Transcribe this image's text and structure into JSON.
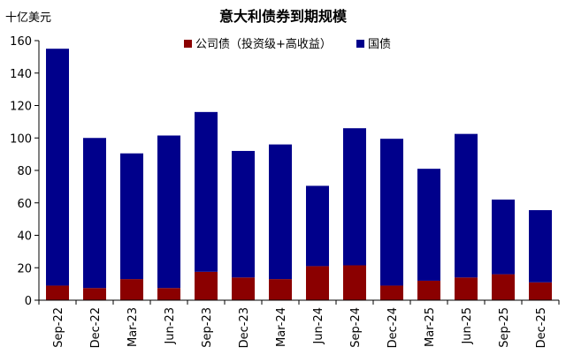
{
  "chart_data": {
    "type": "bar",
    "stacked": true,
    "title": "意大利债券到期规模",
    "unit_label": "十亿美元",
    "categories": [
      "Sep-22",
      "Dec-22",
      "Mar-23",
      "Jun-23",
      "Sep-23",
      "Dec-23",
      "Mar-24",
      "Jun-24",
      "Sep-24",
      "Dec-24",
      "Mar-25",
      "Jun-25",
      "Sep-25",
      "Dec-25"
    ],
    "series": [
      {
        "name": "公司债（投资级+高收益）",
        "color": "#8b0000",
        "values": [
          9,
          7.5,
          13,
          7.5,
          17.5,
          14,
          13,
          21,
          21.5,
          9,
          12,
          14,
          16,
          11
        ]
      },
      {
        "name": "国债",
        "color": "#00008b",
        "values": [
          146,
          92.5,
          77.5,
          94,
          98.5,
          78,
          83,
          49.5,
          84.5,
          90.5,
          69,
          88.5,
          46,
          44.5
        ]
      }
    ],
    "ylim": [
      0,
      160
    ],
    "yticks": [
      0,
      20,
      40,
      60,
      80,
      100,
      120,
      140,
      160
    ],
    "grid": false,
    "legend_position": "top-center"
  }
}
